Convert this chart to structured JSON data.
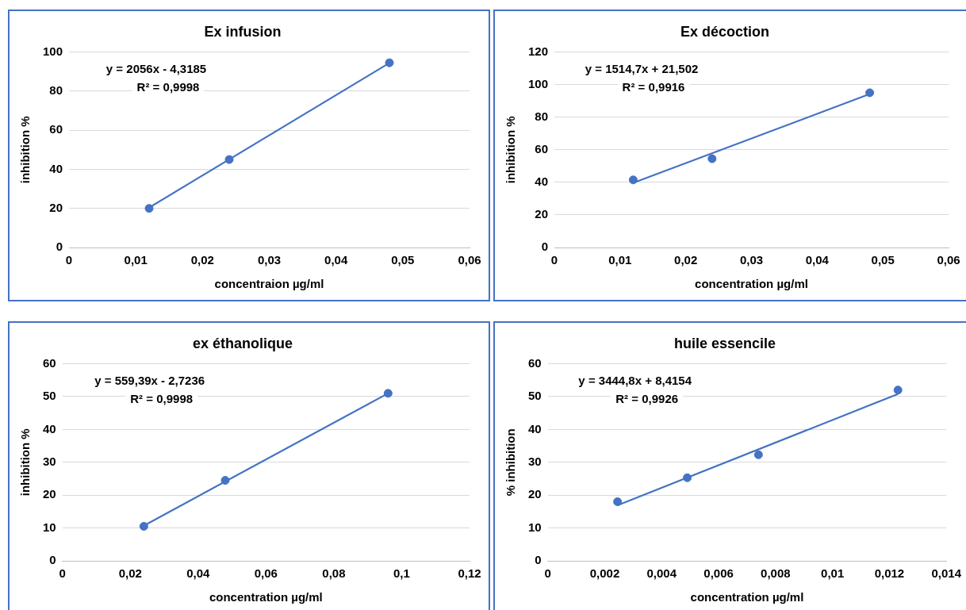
{
  "chart_data": [
    {
      "type": "scatter",
      "title": "Ex infusion",
      "xlabel": "concentraion µg/ml",
      "ylabel": "inhibition %",
      "grid": "y",
      "legend": false,
      "marker": "circle",
      "xlim": [
        0,
        0.06
      ],
      "xticks": [
        {
          "value": 0,
          "label": "0"
        },
        {
          "value": 0.01,
          "label": "0,01"
        },
        {
          "value": 0.02,
          "label": "0,02"
        },
        {
          "value": 0.03,
          "label": "0,03"
        },
        {
          "value": 0.04,
          "label": "0,04"
        },
        {
          "value": 0.05,
          "label": "0,05"
        },
        {
          "value": 0.06,
          "label": "0,06"
        }
      ],
      "ylim": [
        0,
        100
      ],
      "yticks": [
        0,
        20,
        40,
        60,
        80,
        100
      ],
      "series": [
        {
          "type": "scatter",
          "color": "#4472c4",
          "x": [
            0.012,
            0.024,
            0.048
          ],
          "values": [
            20,
            45,
            94.5
          ]
        },
        {
          "type": "line",
          "color": "#4472c4",
          "marker": "none",
          "x": [
            0.012,
            0.048
          ],
          "values": [
            20.4,
            94.4
          ]
        }
      ],
      "annotations": [
        "y = 2056x - 4,3185",
        "R² = 0,9998"
      ]
    },
    {
      "type": "scatter",
      "title": "Ex décoction",
      "xlabel": "concentration µg/ml",
      "ylabel": "inhibition %",
      "grid": "y",
      "legend": false,
      "marker": "circle",
      "xlim": [
        0,
        0.06
      ],
      "xticks": [
        {
          "value": 0,
          "label": "0"
        },
        {
          "value": 0.01,
          "label": "0,01"
        },
        {
          "value": 0.02,
          "label": "0,02"
        },
        {
          "value": 0.03,
          "label": "0,03"
        },
        {
          "value": 0.04,
          "label": "0,04"
        },
        {
          "value": 0.05,
          "label": "0,05"
        },
        {
          "value": 0.06,
          "label": "0,06"
        }
      ],
      "ylim": [
        0,
        120
      ],
      "yticks": [
        0,
        20,
        40,
        60,
        80,
        100,
        120
      ],
      "series": [
        {
          "type": "scatter",
          "color": "#4472c4",
          "x": [
            0.012,
            0.024,
            0.048
          ],
          "values": [
            41.5,
            54.5,
            95
          ]
        },
        {
          "type": "line",
          "color": "#4472c4",
          "marker": "none",
          "x": [
            0.012,
            0.048
          ],
          "values": [
            39.7,
            94.2
          ]
        }
      ],
      "annotations": [
        "y = 1514,7x + 21,502",
        "R² = 0,9916"
      ]
    },
    {
      "type": "scatter",
      "title": "ex éthanolique",
      "xlabel": "concentration µg/ml",
      "ylabel": "inhibition %",
      "grid": "y",
      "legend": false,
      "marker": "circle",
      "xlim": [
        0,
        0.12
      ],
      "xticks": [
        {
          "value": 0,
          "label": "0"
        },
        {
          "value": 0.02,
          "label": "0,02"
        },
        {
          "value": 0.04,
          "label": "0,04"
        },
        {
          "value": 0.06,
          "label": "0,06"
        },
        {
          "value": 0.08,
          "label": "0,08"
        },
        {
          "value": 0.1,
          "label": "0,1"
        },
        {
          "value": 0.12,
          "label": "0,12"
        }
      ],
      "ylim": [
        0,
        60
      ],
      "yticks": [
        0,
        10,
        20,
        30,
        40,
        50,
        60
      ],
      "series": [
        {
          "type": "scatter",
          "color": "#4472c4",
          "x": [
            0.024,
            0.048,
            0.096
          ],
          "values": [
            10.5,
            24.5,
            51
          ]
        },
        {
          "type": "line",
          "color": "#4472c4",
          "marker": "none",
          "x": [
            0.024,
            0.096
          ],
          "values": [
            10.7,
            51
          ]
        }
      ],
      "annotations": [
        "y = 559,39x - 2,7236",
        "R² = 0,9998"
      ]
    },
    {
      "type": "scatter",
      "title": "huile essencile",
      "xlabel": "concentration µg/ml",
      "ylabel": "% inhibition",
      "grid": "y",
      "legend": false,
      "marker": "circle",
      "xlim": [
        0,
        0.014
      ],
      "xticks": [
        {
          "value": 0,
          "label": "0"
        },
        {
          "value": 0.002,
          "label": "0,002"
        },
        {
          "value": 0.004,
          "label": "0,004"
        },
        {
          "value": 0.006,
          "label": "0,006"
        },
        {
          "value": 0.008,
          "label": "0,008"
        },
        {
          "value": 0.01,
          "label": "0,01"
        },
        {
          "value": 0.012,
          "label": "0,012"
        },
        {
          "value": 0.014,
          "label": "0,014"
        }
      ],
      "ylim": [
        0,
        60
      ],
      "yticks": [
        0,
        10,
        20,
        30,
        40,
        50,
        60
      ],
      "series": [
        {
          "type": "scatter",
          "color": "#4472c4",
          "x": [
            0.00245,
            0.0049,
            0.0074,
            0.0123
          ],
          "values": [
            18,
            25.3,
            32.3,
            52
          ]
        },
        {
          "type": "line",
          "color": "#4472c4",
          "marker": "none",
          "x": [
            0.00245,
            0.0123
          ],
          "values": [
            16.9,
            50.8
          ]
        }
      ],
      "annotations": [
        "y = 3444,8x + 8,4154",
        "R² = 0,9926"
      ]
    }
  ]
}
